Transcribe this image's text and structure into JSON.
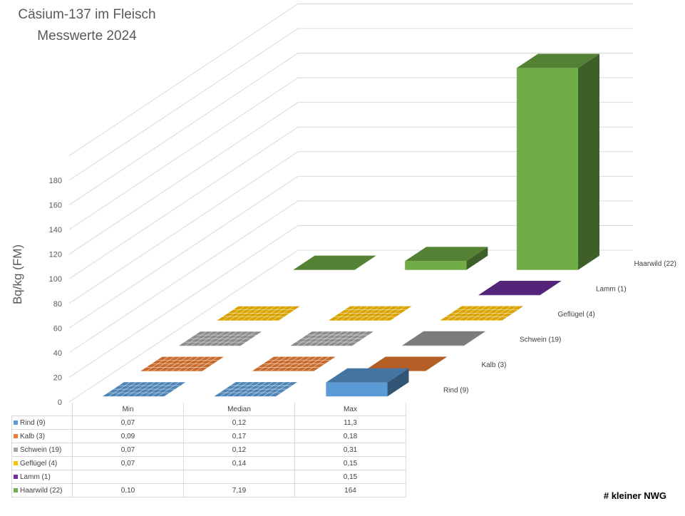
{
  "title_line1": "Cäsium-137 im Fleisch",
  "title_line2": "Messwerte 2024",
  "credit": "# kleiner NWG",
  "chart_data": {
    "type": "bar",
    "subtype": "3d-column",
    "categories": [
      "Min",
      "Median",
      "Max"
    ],
    "ylabel": "Bq/kg (FM)",
    "ylim": [
      0,
      180
    ],
    "yticks": [
      "0",
      "20",
      "40",
      "60",
      "80",
      "100",
      "120",
      "140",
      "160",
      "180"
    ],
    "grid": true,
    "series": [
      {
        "name": "Rind (9)",
        "values": [
          0.07,
          0.12,
          11.3
        ],
        "labels": [
          "0,07",
          "0,12",
          "11,3"
        ],
        "color": "#5b9bd5"
      },
      {
        "name": "Kalb (3)",
        "values": [
          0.09,
          0.17,
          0.18
        ],
        "labels": [
          "0,09",
          "0,17",
          "0,18"
        ],
        "color": "#ed7d31"
      },
      {
        "name": "Schwein (19)",
        "values": [
          0.07,
          0.12,
          0.31
        ],
        "labels": [
          "0,07",
          "0,12",
          "0,31"
        ],
        "color": "#a5a5a5"
      },
      {
        "name": "Geflügel (4)",
        "values": [
          0.07,
          0.14,
          0.15
        ],
        "labels": [
          "0,07",
          "0,14",
          "0,15"
        ],
        "color": "#ffc000"
      },
      {
        "name": "Lamm (1)",
        "values": [
          null,
          null,
          0.15
        ],
        "labels": [
          "",
          "",
          "0,15"
        ],
        "color": "#7030a0"
      },
      {
        "name": "Haarwild (22)",
        "values": [
          0.1,
          7.19,
          164
        ],
        "labels": [
          "0,10",
          "7,19",
          "164"
        ],
        "color": "#70ad47"
      }
    ]
  }
}
